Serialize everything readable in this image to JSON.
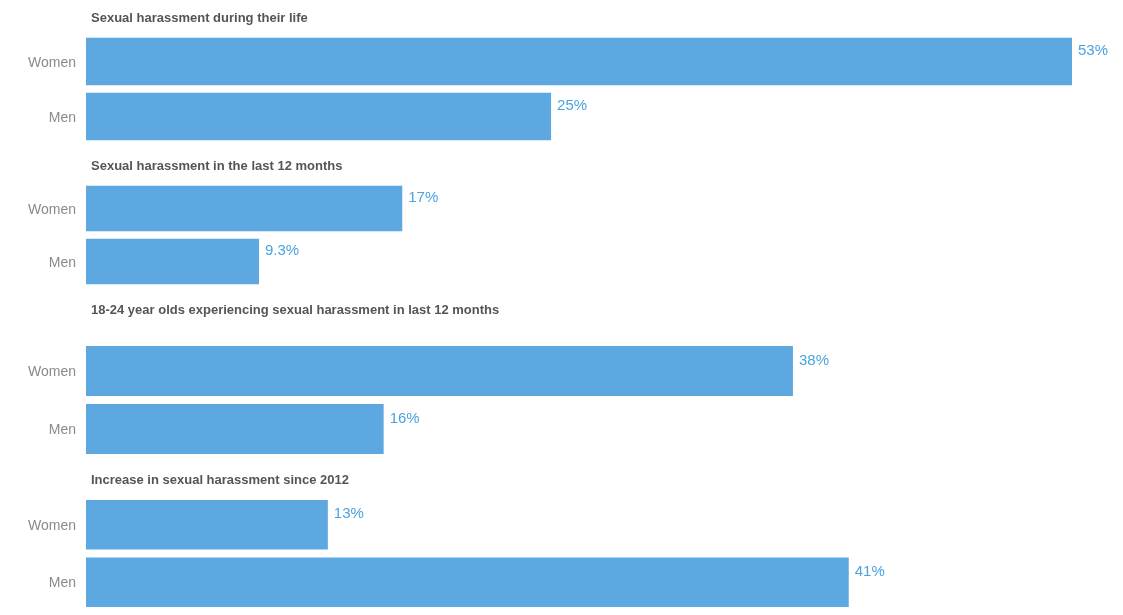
{
  "chart_data": [
    {
      "type": "bar",
      "orientation": "horizontal",
      "title": "Sexual harassment during their life",
      "categories": [
        "Women",
        "Men"
      ],
      "values": [
        53,
        25
      ],
      "value_labels": [
        "53%",
        "25%"
      ],
      "color": "#5ea8e2",
      "tick_labels": "y"
    },
    {
      "type": "bar",
      "orientation": "horizontal",
      "title": "Sexual harassment in the last 12 months",
      "categories": [
        "Women",
        "Men"
      ],
      "values": [
        17,
        9.3
      ],
      "value_labels": [
        "17%",
        "9.3%"
      ],
      "color": "#5ea8e2",
      "tick_labels": "y"
    },
    {
      "type": "bar",
      "orientation": "horizontal",
      "title": "18-24 year olds experiencing sexual harassment in last 12 months",
      "categories": [
        "Women",
        "Men"
      ],
      "values": [
        38,
        16
      ],
      "value_labels": [
        "38%",
        "16%"
      ],
      "color": "#5ea8e2",
      "tick_labels": "y"
    },
    {
      "type": "bar",
      "orientation": "horizontal",
      "title": "Increase in sexual harassment since 2012",
      "categories": [
        "Women",
        "Men"
      ],
      "values": [
        13,
        41
      ],
      "value_labels": [
        "13%",
        "41%"
      ],
      "color": "#5ea8e2",
      "tick_labels": "y"
    }
  ]
}
